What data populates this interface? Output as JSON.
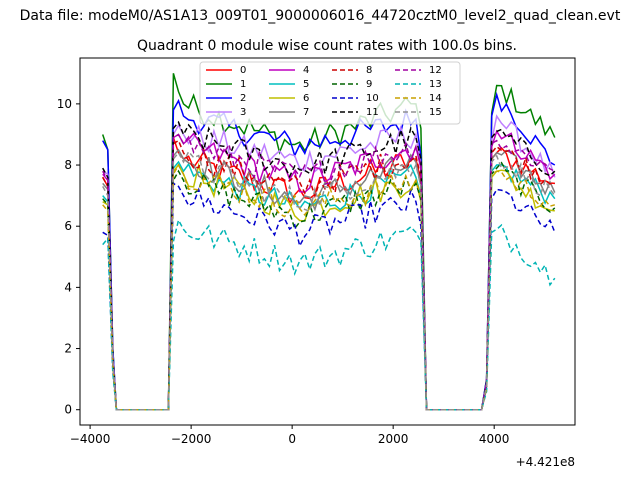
{
  "chart_data": {
    "type": "line",
    "suptitle": "Data file: modeM0/AS1A13_009T01_9000006016_44720cztM0_level2_quad_clean.evt",
    "title": "Quadrant 0 module wise count rates with 100.0s bins.",
    "xlabel": "",
    "ylabel": "",
    "x_offset_label": "+4.421e8",
    "xlim": [
      -4200,
      5600
    ],
    "ylim": [
      -0.5,
      11.5
    ],
    "xticks": [
      -4000,
      -2000,
      0,
      2000,
      4000
    ],
    "xtick_labels": [
      "−4000",
      "−2000",
      "0",
      "2000",
      "4000"
    ],
    "yticks": [
      0,
      2,
      4,
      6,
      8,
      10
    ],
    "ytick_labels": [
      "0",
      "2",
      "4",
      "6",
      "8",
      "10"
    ],
    "grid": false,
    "legend_position": "top-center",
    "legend_columns": 4,
    "x_knots": [
      -3750,
      -3650,
      -3550,
      -3480,
      -2450,
      -2350,
      -2250,
      -2150,
      2450,
      2550,
      2660,
      3750,
      3850,
      3950,
      4050,
      5200
    ],
    "series": [
      {
        "name": "0",
        "color": "#ff0000",
        "dash": "solid",
        "values": [
          7.6,
          7.3,
          1.5,
          0,
          0,
          8.9,
          8.4,
          8.2,
          8.2,
          7.5,
          0,
          0,
          0.8,
          8.2,
          8.4,
          7.4
        ]
      },
      {
        "name": "1",
        "color": "#008000",
        "dash": "solid",
        "values": [
          9.0,
          8.5,
          2.0,
          0,
          0,
          11.0,
          10.4,
          10.0,
          10.0,
          9.2,
          0,
          0,
          1.0,
          9.7,
          10.6,
          8.9
        ]
      },
      {
        "name": "2",
        "color": "#0000ff",
        "dash": "solid",
        "values": [
          8.8,
          8.5,
          2.0,
          0,
          0,
          9.8,
          10.1,
          9.6,
          9.5,
          8.3,
          0,
          0,
          1.0,
          9.6,
          10.3,
          8.0
        ]
      },
      {
        "name": "3",
        "color": "#bf80ff",
        "dash": "solid",
        "values": [
          7.8,
          7.7,
          1.8,
          0,
          0,
          9.0,
          9.3,
          9.0,
          9.0,
          8.0,
          0,
          0,
          0.9,
          8.8,
          9.6,
          7.6
        ]
      },
      {
        "name": "4",
        "color": "#bf00bf",
        "dash": "solid",
        "values": [
          7.7,
          7.5,
          1.7,
          0,
          0,
          8.9,
          9.0,
          8.7,
          8.6,
          7.9,
          0,
          0,
          0.9,
          8.6,
          9.1,
          7.7
        ]
      },
      {
        "name": "5",
        "color": "#00bfbf",
        "dash": "solid",
        "values": [
          7.0,
          6.8,
          1.6,
          0,
          0,
          7.9,
          8.1,
          7.8,
          7.6,
          7.0,
          0,
          0,
          0.8,
          7.8,
          8.0,
          6.9
        ]
      },
      {
        "name": "6",
        "color": "#bfbf00",
        "dash": "solid",
        "values": [
          6.8,
          6.7,
          1.5,
          0,
          0,
          7.8,
          8.0,
          7.7,
          7.5,
          6.8,
          0,
          0,
          0.8,
          7.6,
          7.8,
          6.5
        ]
      },
      {
        "name": "7",
        "color": "#808080",
        "dash": "solid",
        "values": [
          7.4,
          7.2,
          1.6,
          0,
          0,
          8.3,
          8.5,
          8.2,
          8.1,
          7.3,
          0,
          0,
          0.8,
          8.2,
          8.4,
          7.1
        ]
      },
      {
        "name": "8",
        "color": "#cc0000",
        "dash": "dashed",
        "values": [
          7.6,
          7.3,
          1.6,
          0,
          0,
          8.7,
          8.8,
          8.4,
          8.3,
          7.6,
          0,
          0,
          0.8,
          8.4,
          8.6,
          7.4
        ]
      },
      {
        "name": "9",
        "color": "#006400",
        "dash": "dashed",
        "values": [
          6.9,
          6.7,
          1.5,
          0,
          0,
          7.5,
          7.8,
          7.5,
          7.4,
          6.9,
          0,
          0,
          0.8,
          7.7,
          7.9,
          6.6
        ]
      },
      {
        "name": "10",
        "color": "#0000cc",
        "dash": "dashed",
        "values": [
          5.8,
          5.7,
          1.3,
          0,
          0,
          7.4,
          7.3,
          7.0,
          6.8,
          6.0,
          0,
          0,
          0.7,
          6.9,
          7.2,
          5.8
        ]
      },
      {
        "name": "11",
        "color": "#000000",
        "dash": "dashed",
        "values": [
          7.9,
          7.6,
          1.7,
          0,
          0,
          9.2,
          9.4,
          9.0,
          8.9,
          8.2,
          0,
          0,
          0.9,
          8.9,
          9.1,
          7.8
        ]
      },
      {
        "name": "12",
        "color": "#a000a0",
        "dash": "dashed",
        "values": [
          7.8,
          7.5,
          1.7,
          0,
          0,
          8.9,
          9.0,
          8.7,
          8.6,
          8.0,
          0,
          0,
          0.9,
          8.7,
          8.8,
          7.8
        ]
      },
      {
        "name": "13",
        "color": "#00b4b4",
        "dash": "dashed",
        "values": [
          5.4,
          5.6,
          1.2,
          0,
          0,
          5.5,
          6.2,
          5.9,
          5.8,
          5.5,
          0,
          0,
          0.6,
          5.8,
          5.9,
          4.3
        ]
      },
      {
        "name": "14",
        "color": "#c8a000",
        "dash": "dashed",
        "values": [
          6.7,
          6.5,
          1.5,
          0,
          0,
          7.7,
          8.0,
          7.7,
          7.5,
          7.0,
          0,
          0,
          0.7,
          7.7,
          7.8,
          6.7
        ]
      },
      {
        "name": "15",
        "color": "#909090",
        "dash": "dashed",
        "values": [
          7.3,
          7.0,
          1.6,
          0,
          0,
          8.2,
          8.4,
          8.1,
          8.0,
          7.3,
          0,
          0,
          0.8,
          8.1,
          8.3,
          7.0
        ]
      }
    ],
    "middle_levels": [
      7.0,
      8.6,
      8.6,
      8.1,
      7.4,
      6.6,
      6.5,
      6.8,
      7.2,
      6.3,
      5.8,
      7.9,
      7.6,
      4.8,
      6.6,
      6.8
    ]
  }
}
